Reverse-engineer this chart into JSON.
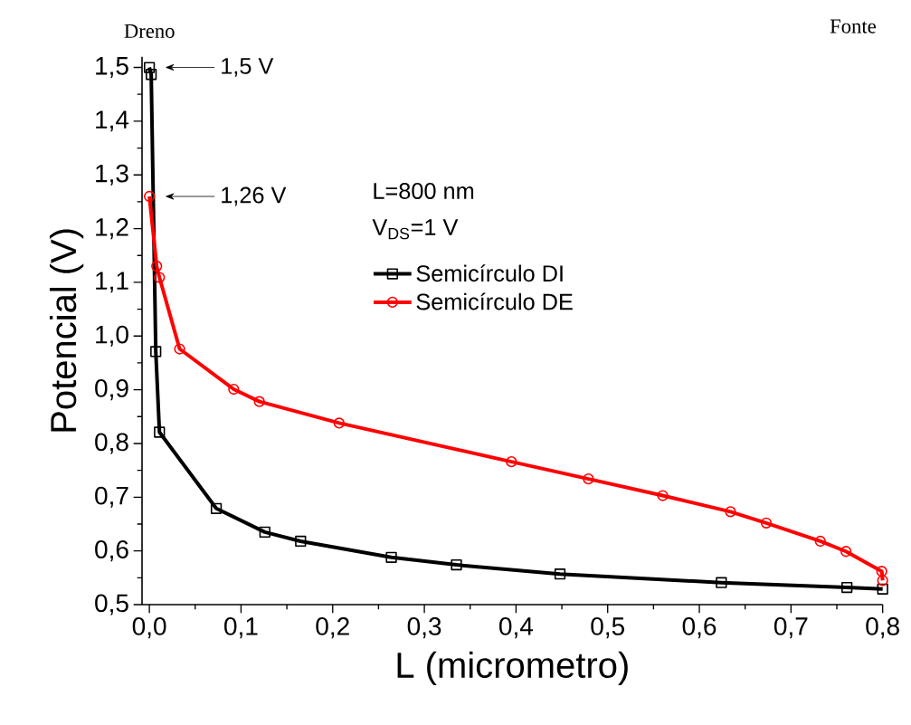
{
  "chart_data": {
    "type": "line",
    "xlabel": "L (micrometro)",
    "ylabel": "Potencial (V)",
    "xlim": [
      -0.008,
      0.8
    ],
    "ylim": [
      0.5,
      1.52
    ],
    "xticks": [
      {
        "value": 0,
        "label": "0,0"
      },
      {
        "value": 0.1,
        "label": "0,1"
      },
      {
        "value": 0.2,
        "label": "0,2"
      },
      {
        "value": 0.3,
        "label": "0,3"
      },
      {
        "value": 0.4,
        "label": "0,4"
      },
      {
        "value": 0.5,
        "label": "0,5"
      },
      {
        "value": 0.6,
        "label": "0,6"
      },
      {
        "value": 0.7,
        "label": "0,7"
      },
      {
        "value": 0.8,
        "label": "0,8"
      }
    ],
    "yticks": [
      {
        "value": 0.5,
        "label": "0,5"
      },
      {
        "value": 0.6,
        "label": "0,6"
      },
      {
        "value": 0.7,
        "label": "0,7"
      },
      {
        "value": 0.8,
        "label": "0,8"
      },
      {
        "value": 0.9,
        "label": "0,9"
      },
      {
        "value": 1.0,
        "label": "1,0"
      },
      {
        "value": 1.1,
        "label": "1,1"
      },
      {
        "value": 1.2,
        "label": "1,2"
      },
      {
        "value": 1.3,
        "label": "1,3"
      },
      {
        "value": 1.4,
        "label": "1,4"
      },
      {
        "value": 1.5,
        "label": "1,5"
      }
    ],
    "grid": false,
    "legend": "top",
    "line_style": "solid",
    "series": [
      {
        "name": "Semicírculo DI",
        "color": "#000000",
        "marker": "square",
        "x": [
          0,
          0.002,
          0.007,
          0.011,
          0.073,
          0.126,
          0.165,
          0.264,
          0.335,
          0.448,
          0.624,
          0.761,
          0.8
        ],
        "values": [
          1.5,
          1.487,
          0.971,
          0.821,
          0.679,
          0.635,
          0.618,
          0.588,
          0.574,
          0.557,
          0.541,
          0.532,
          0.529
        ]
      },
      {
        "name": "Semicírculo DE",
        "color": "#ff0000",
        "marker": "circle",
        "x": [
          0,
          0.008,
          0.011,
          0.033,
          0.092,
          0.12,
          0.207,
          0.395,
          0.479,
          0.56,
          0.634,
          0.673,
          0.732,
          0.76,
          0.799,
          0.8
        ],
        "values": [
          1.26,
          1.13,
          1.109,
          0.976,
          0.901,
          0.878,
          0.838,
          0.766,
          0.734,
          0.703,
          0.673,
          0.652,
          0.618,
          0.599,
          0.562,
          0.545
        ]
      }
    ],
    "annotations": [
      "1,5 V",
      "1,26 V",
      "L=800 nm",
      "V$_{DS}$=1 V",
      "Dreno",
      "Fonte"
    ]
  }
}
